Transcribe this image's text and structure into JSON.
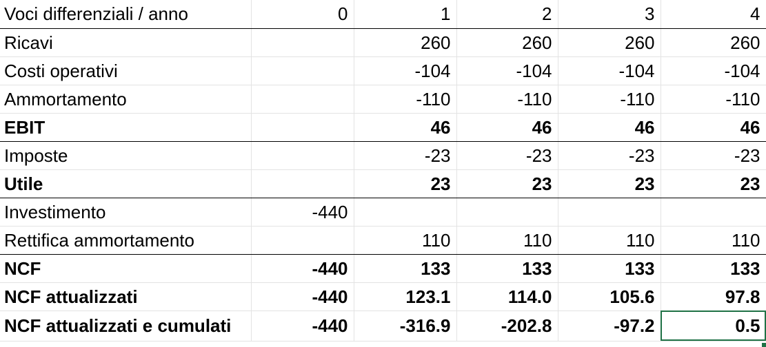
{
  "sheet": {
    "header": {
      "label": "Voci differenziali / anno",
      "cells": [
        "0",
        "1",
        "2",
        "3",
        "4"
      ]
    },
    "rows": [
      {
        "label": "Ricavi",
        "cells": [
          "",
          "260",
          "260",
          "260",
          "260"
        ]
      },
      {
        "label": "Costi operativi",
        "cells": [
          "",
          "-104",
          "-104",
          "-104",
          "-104"
        ]
      },
      {
        "label": "Ammortamento",
        "cells": [
          "",
          "-110",
          "-110",
          "-110",
          "-110"
        ]
      },
      {
        "label": "EBIT",
        "cells": [
          "",
          "46",
          "46",
          "46",
          "46"
        ]
      },
      {
        "label": "Imposte",
        "cells": [
          "",
          "-23",
          "-23",
          "-23",
          "-23"
        ]
      },
      {
        "label": "Utile",
        "cells": [
          "",
          "23",
          "23",
          "23",
          "23"
        ]
      },
      {
        "label": "Investimento",
        "cells": [
          "-440",
          "",
          "",
          "",
          ""
        ]
      },
      {
        "label": "Rettifica ammortamento",
        "cells": [
          "",
          "110",
          "110",
          "110",
          "110"
        ]
      },
      {
        "label": "NCF",
        "cells": [
          "-440",
          "133",
          "133",
          "133",
          "133"
        ]
      },
      {
        "label": "NCF attualizzati",
        "cells": [
          "-440",
          "123.1",
          "114.0",
          "105.6",
          "97.8"
        ]
      },
      {
        "label": "NCF attualizzati e cumulati",
        "cells": [
          "-440",
          "-316.9",
          "-202.8",
          "-97.2",
          "0.5"
        ]
      }
    ],
    "selected_cell": "NCF attualizzati e cumulati / 4",
    "colors": {
      "selection": "#1e7145",
      "gridline": "#e3e3e3",
      "separator": "#000000"
    }
  }
}
